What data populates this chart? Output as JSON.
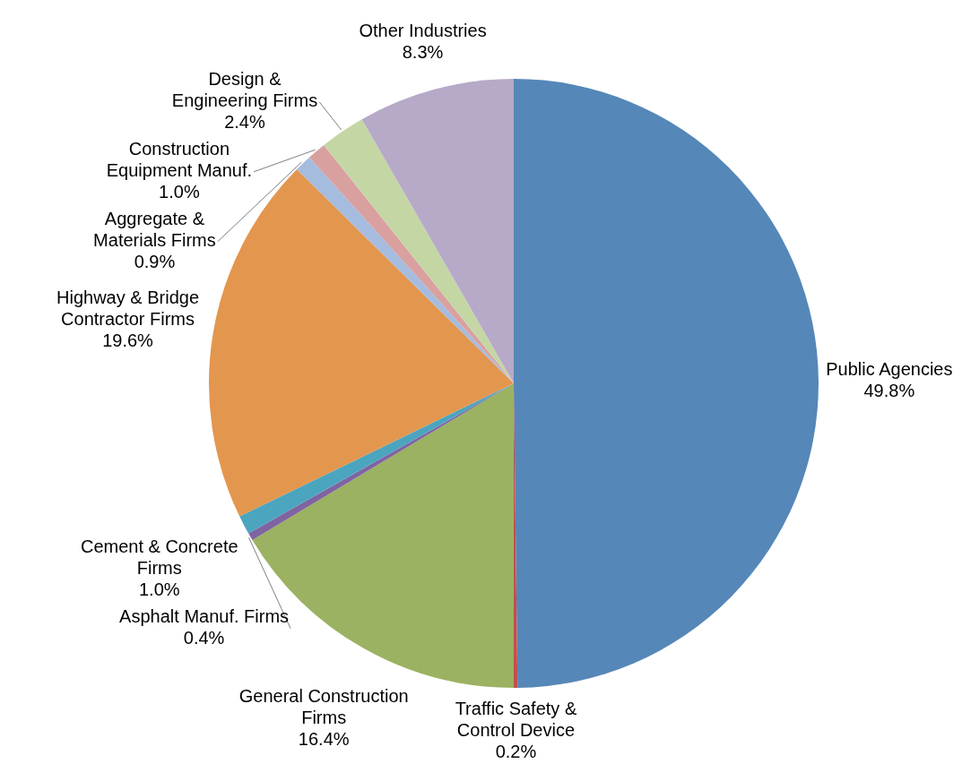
{
  "chart_data": {
    "type": "pie",
    "categories": [
      "Public Agencies",
      "Traffic Safety & Control Device",
      "General Construction Firms",
      "Asphalt Manuf. Firms",
      "Cement & Concrete Firms",
      "Highway & Bridge Contractor Firms",
      "Aggregate & Materials Firms",
      "Construction Equipment Manuf.",
      "Design & Engineering Firms",
      "Other Industries"
    ],
    "values": [
      49.8,
      0.2,
      16.4,
      0.4,
      1.0,
      19.6,
      0.9,
      1.0,
      2.4,
      8.3
    ],
    "colors": [
      "#5587b8",
      "#c0504d",
      "#9bb262",
      "#7f64a1",
      "#4ba5bf",
      "#e3964e",
      "#a5bcdf",
      "#d9a0a0",
      "#c5d6a5",
      "#b7a9c8"
    ],
    "value_labels": [
      "49.8%",
      "0.2%",
      "16.4%",
      "0.4%",
      "1.0%",
      "19.6%",
      "0.9%",
      "1.0%",
      "2.4%",
      "8.3%"
    ],
    "legend": false
  }
}
